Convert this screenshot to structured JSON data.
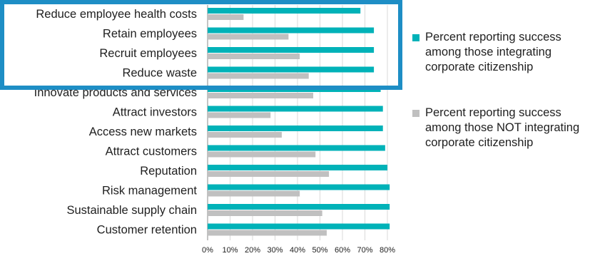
{
  "chart_data": {
    "type": "bar",
    "orientation": "horizontal",
    "categories": [
      "Reduce employee health costs",
      "Retain employees",
      "Recruit employees",
      "Reduce waste",
      "Innovate products and services",
      "Attract investors",
      "Access new markets",
      "Attract customers",
      "Reputation",
      "Risk management",
      "Sustainable supply chain",
      "Customer retention"
    ],
    "series": [
      {
        "name": "Percent reporting success among those integrating corporate citizenship",
        "color": "#00b2b8",
        "values": [
          68,
          74,
          74,
          74,
          77,
          78,
          78,
          79,
          80,
          81,
          81,
          81
        ]
      },
      {
        "name": "Percent reporting success among those NOT integrating corporate citizenship",
        "color": "#c0c0c0",
        "values": [
          16,
          36,
          41,
          45,
          47,
          28,
          33,
          48,
          54,
          41,
          51,
          53
        ]
      }
    ],
    "xlim": [
      0,
      80
    ],
    "xticks": [
      "0%",
      "10%",
      "20%",
      "30%",
      "40%",
      "50%",
      "60%",
      "70%",
      "80%"
    ],
    "grid": true,
    "legend_position": "right",
    "highlight": {
      "categories": [
        "Reduce employee health costs",
        "Retain employees",
        "Recruit employees",
        "Reduce waste"
      ],
      "color": "#1e8ec5"
    }
  }
}
